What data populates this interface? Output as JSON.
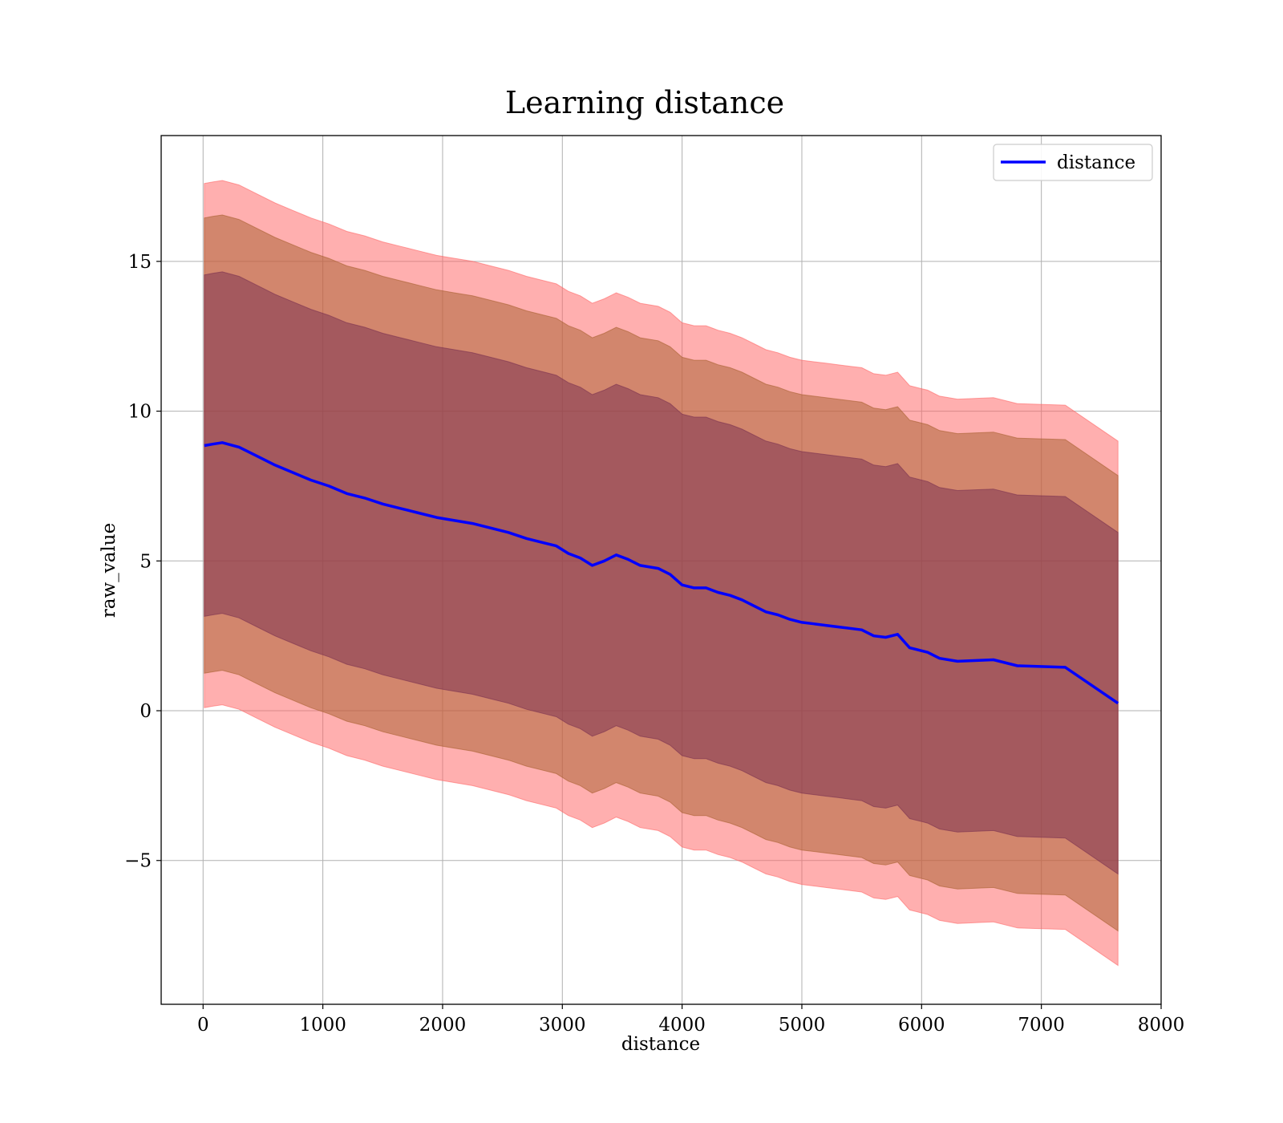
{
  "chart_data": {
    "type": "line",
    "title": "Learning distance",
    "xlabel": "distance",
    "ylabel": "raw_value",
    "xlim": [
      -350,
      8000
    ],
    "ylim": [
      -9.8,
      19.2
    ],
    "xticks": [
      0,
      1000,
      2000,
      3000,
      4000,
      5000,
      6000,
      7000,
      8000
    ],
    "xtick_labels": [
      "0",
      "1000",
      "2000",
      "3000",
      "4000",
      "5000",
      "6000",
      "7000",
      "8000"
    ],
    "yticks": [
      -5,
      0,
      5,
      10,
      15
    ],
    "ytick_labels": [
      "−5",
      "0",
      "5",
      "10",
      "15"
    ],
    "grid": true,
    "legend": {
      "position": "top-right",
      "entries": [
        {
          "label": "distance",
          "color": "#0000ff"
        }
      ]
    },
    "colors": {
      "line": "#0000ff",
      "band_outer": "#ff6666",
      "band_middle": "#a86030",
      "band_inner": "#7a3050"
    },
    "x": [
      10,
      80,
      160,
      300,
      450,
      600,
      750,
      900,
      1050,
      1200,
      1350,
      1500,
      1650,
      1800,
      1950,
      2100,
      2250,
      2400,
      2550,
      2700,
      2850,
      2950,
      3050,
      3150,
      3250,
      3350,
      3450,
      3550,
      3650,
      3800,
      3900,
      4000,
      4100,
      4200,
      4300,
      4400,
      4500,
      4600,
      4700,
      4800,
      4900,
      5000,
      5100,
      5200,
      5300,
      5400,
      5500,
      5600,
      5700,
      5800,
      5900,
      6000,
      6050,
      6150,
      6300,
      6600,
      6800,
      7200,
      7640
    ],
    "series": [
      {
        "name": "distance",
        "values": [
          8.85,
          8.9,
          8.95,
          8.8,
          8.5,
          8.2,
          7.95,
          7.7,
          7.5,
          7.25,
          7.1,
          6.9,
          6.75,
          6.6,
          6.45,
          6.35,
          6.25,
          6.1,
          5.95,
          5.75,
          5.6,
          5.5,
          5.25,
          5.1,
          4.85,
          5.0,
          5.2,
          5.05,
          4.85,
          4.75,
          4.55,
          4.2,
          4.1,
          4.1,
          3.95,
          3.85,
          3.7,
          3.5,
          3.3,
          3.2,
          3.05,
          2.95,
          2.9,
          2.85,
          2.8,
          2.75,
          2.7,
          2.5,
          2.45,
          2.55,
          2.1,
          2.0,
          1.95,
          1.75,
          1.65,
          1.7,
          1.5,
          1.45,
          0.25
        ]
      }
    ],
    "bands": [
      {
        "name": "band_outer",
        "offset": 8.75
      },
      {
        "name": "band_middle",
        "offset": 7.6
      },
      {
        "name": "band_inner",
        "offset": 5.7
      }
    ]
  }
}
